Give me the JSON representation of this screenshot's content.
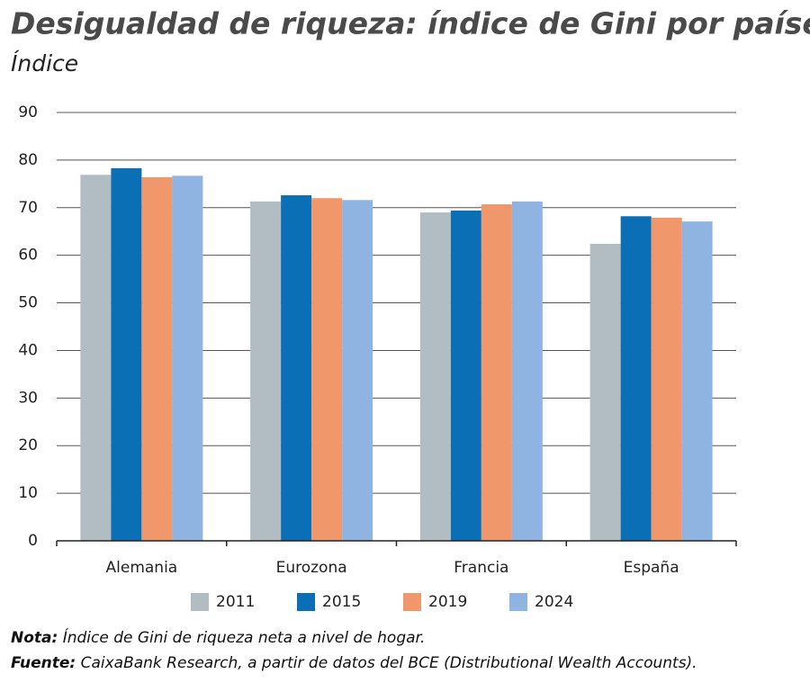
{
  "chart_data": {
    "type": "bar",
    "title": "Desigualdad de riqueza: índice de Gini por países",
    "subtitle": "Índice",
    "categories": [
      "Alemania",
      "Eurozona",
      "Francia",
      "España"
    ],
    "series": [
      {
        "name": "2011",
        "color": "#b1bdc2",
        "values": [
          76.9,
          71.3,
          69.0,
          62.4
        ]
      },
      {
        "name": "2015",
        "color": "#0b6fb5",
        "values": [
          78.3,
          72.6,
          69.4,
          68.2
        ]
      },
      {
        "name": "2019",
        "color": "#f0986c",
        "values": [
          76.4,
          72.0,
          70.7,
          67.9
        ]
      },
      {
        "name": "2024",
        "color": "#8fb4e1",
        "values": [
          76.7,
          71.6,
          71.3,
          67.1
        ]
      }
    ],
    "ylim": [
      0,
      90
    ],
    "yticks": [
      0,
      10,
      20,
      30,
      40,
      50,
      60,
      70,
      80,
      90
    ],
    "grid": true,
    "note_label": "Nota:",
    "note": "Índice de Gini de riqueza neta a nivel de hogar.",
    "source_label": "Fuente:",
    "source": "CaixaBank Research, a partir de datos del BCE (Distributional Wealth Accounts)."
  }
}
